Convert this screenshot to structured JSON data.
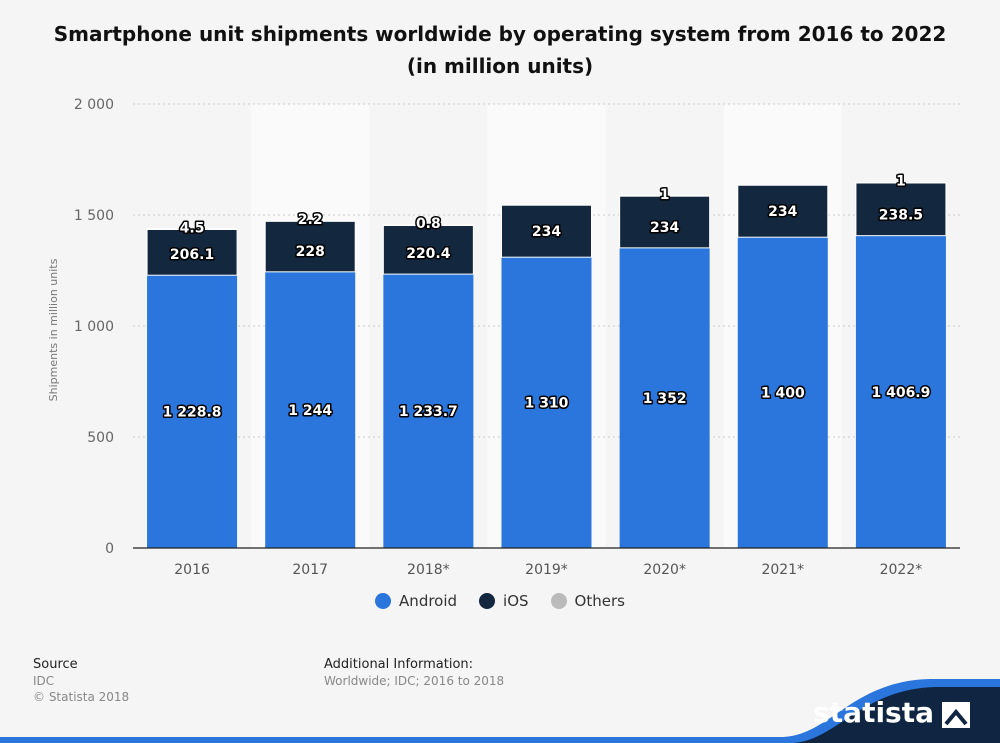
{
  "title_line1": "Smartphone unit shipments worldwide by operating system from 2016 to 2022",
  "title_line2": "(in million units)",
  "colors": {
    "android": "#2a76dd",
    "ios": "#13273f",
    "others": "#bbbbbb",
    "grid": "#cccccc",
    "band": "#fafafa"
  },
  "chart_data": {
    "type": "bar",
    "stacked": true,
    "categories": [
      "2016",
      "2017",
      "2018*",
      "2019*",
      "2020*",
      "2021*",
      "2022*"
    ],
    "series": [
      {
        "name": "Android",
        "values": [
          1228.8,
          1244,
          1233.7,
          1310,
          1352,
          1400,
          1406.9
        ],
        "labels": [
          "1 228.8",
          "1 244",
          "1 233.7",
          "1 310",
          "1 352",
          "1 400",
          "1 406.9"
        ]
      },
      {
        "name": "iOS",
        "values": [
          206.1,
          228,
          220.4,
          234,
          234,
          234,
          238.5
        ],
        "labels": [
          "206.1",
          "228",
          "220.4",
          "234",
          "234",
          "234",
          "238.5"
        ]
      },
      {
        "name": "Others",
        "values": [
          4.5,
          2.2,
          0.8,
          null,
          1,
          null,
          1
        ],
        "labels": [
          "4.5",
          "2.2",
          "0.8",
          "",
          "1",
          "",
          "1"
        ]
      }
    ],
    "ylabel": "Shipments in million units",
    "ylim": [
      0,
      2000
    ],
    "yticks": [
      0,
      500,
      1000,
      1500,
      2000
    ],
    "ytick_labels": [
      "0",
      "500",
      "1 000",
      "1 500",
      "2 000"
    ],
    "grid": true,
    "legend_position": "bottom"
  },
  "legend": [
    {
      "label": "Android",
      "color": "#2a76dd"
    },
    {
      "label": "iOS",
      "color": "#13273f"
    },
    {
      "label": "Others",
      "color": "#bbbbbb"
    }
  ],
  "footer": {
    "source_head": "Source",
    "source_line1": "IDC",
    "source_line2": "© Statista 2018",
    "info_head": "Additional Information:",
    "info_line": "Worldwide; IDC; 2016 to 2018"
  },
  "brand": "statista"
}
